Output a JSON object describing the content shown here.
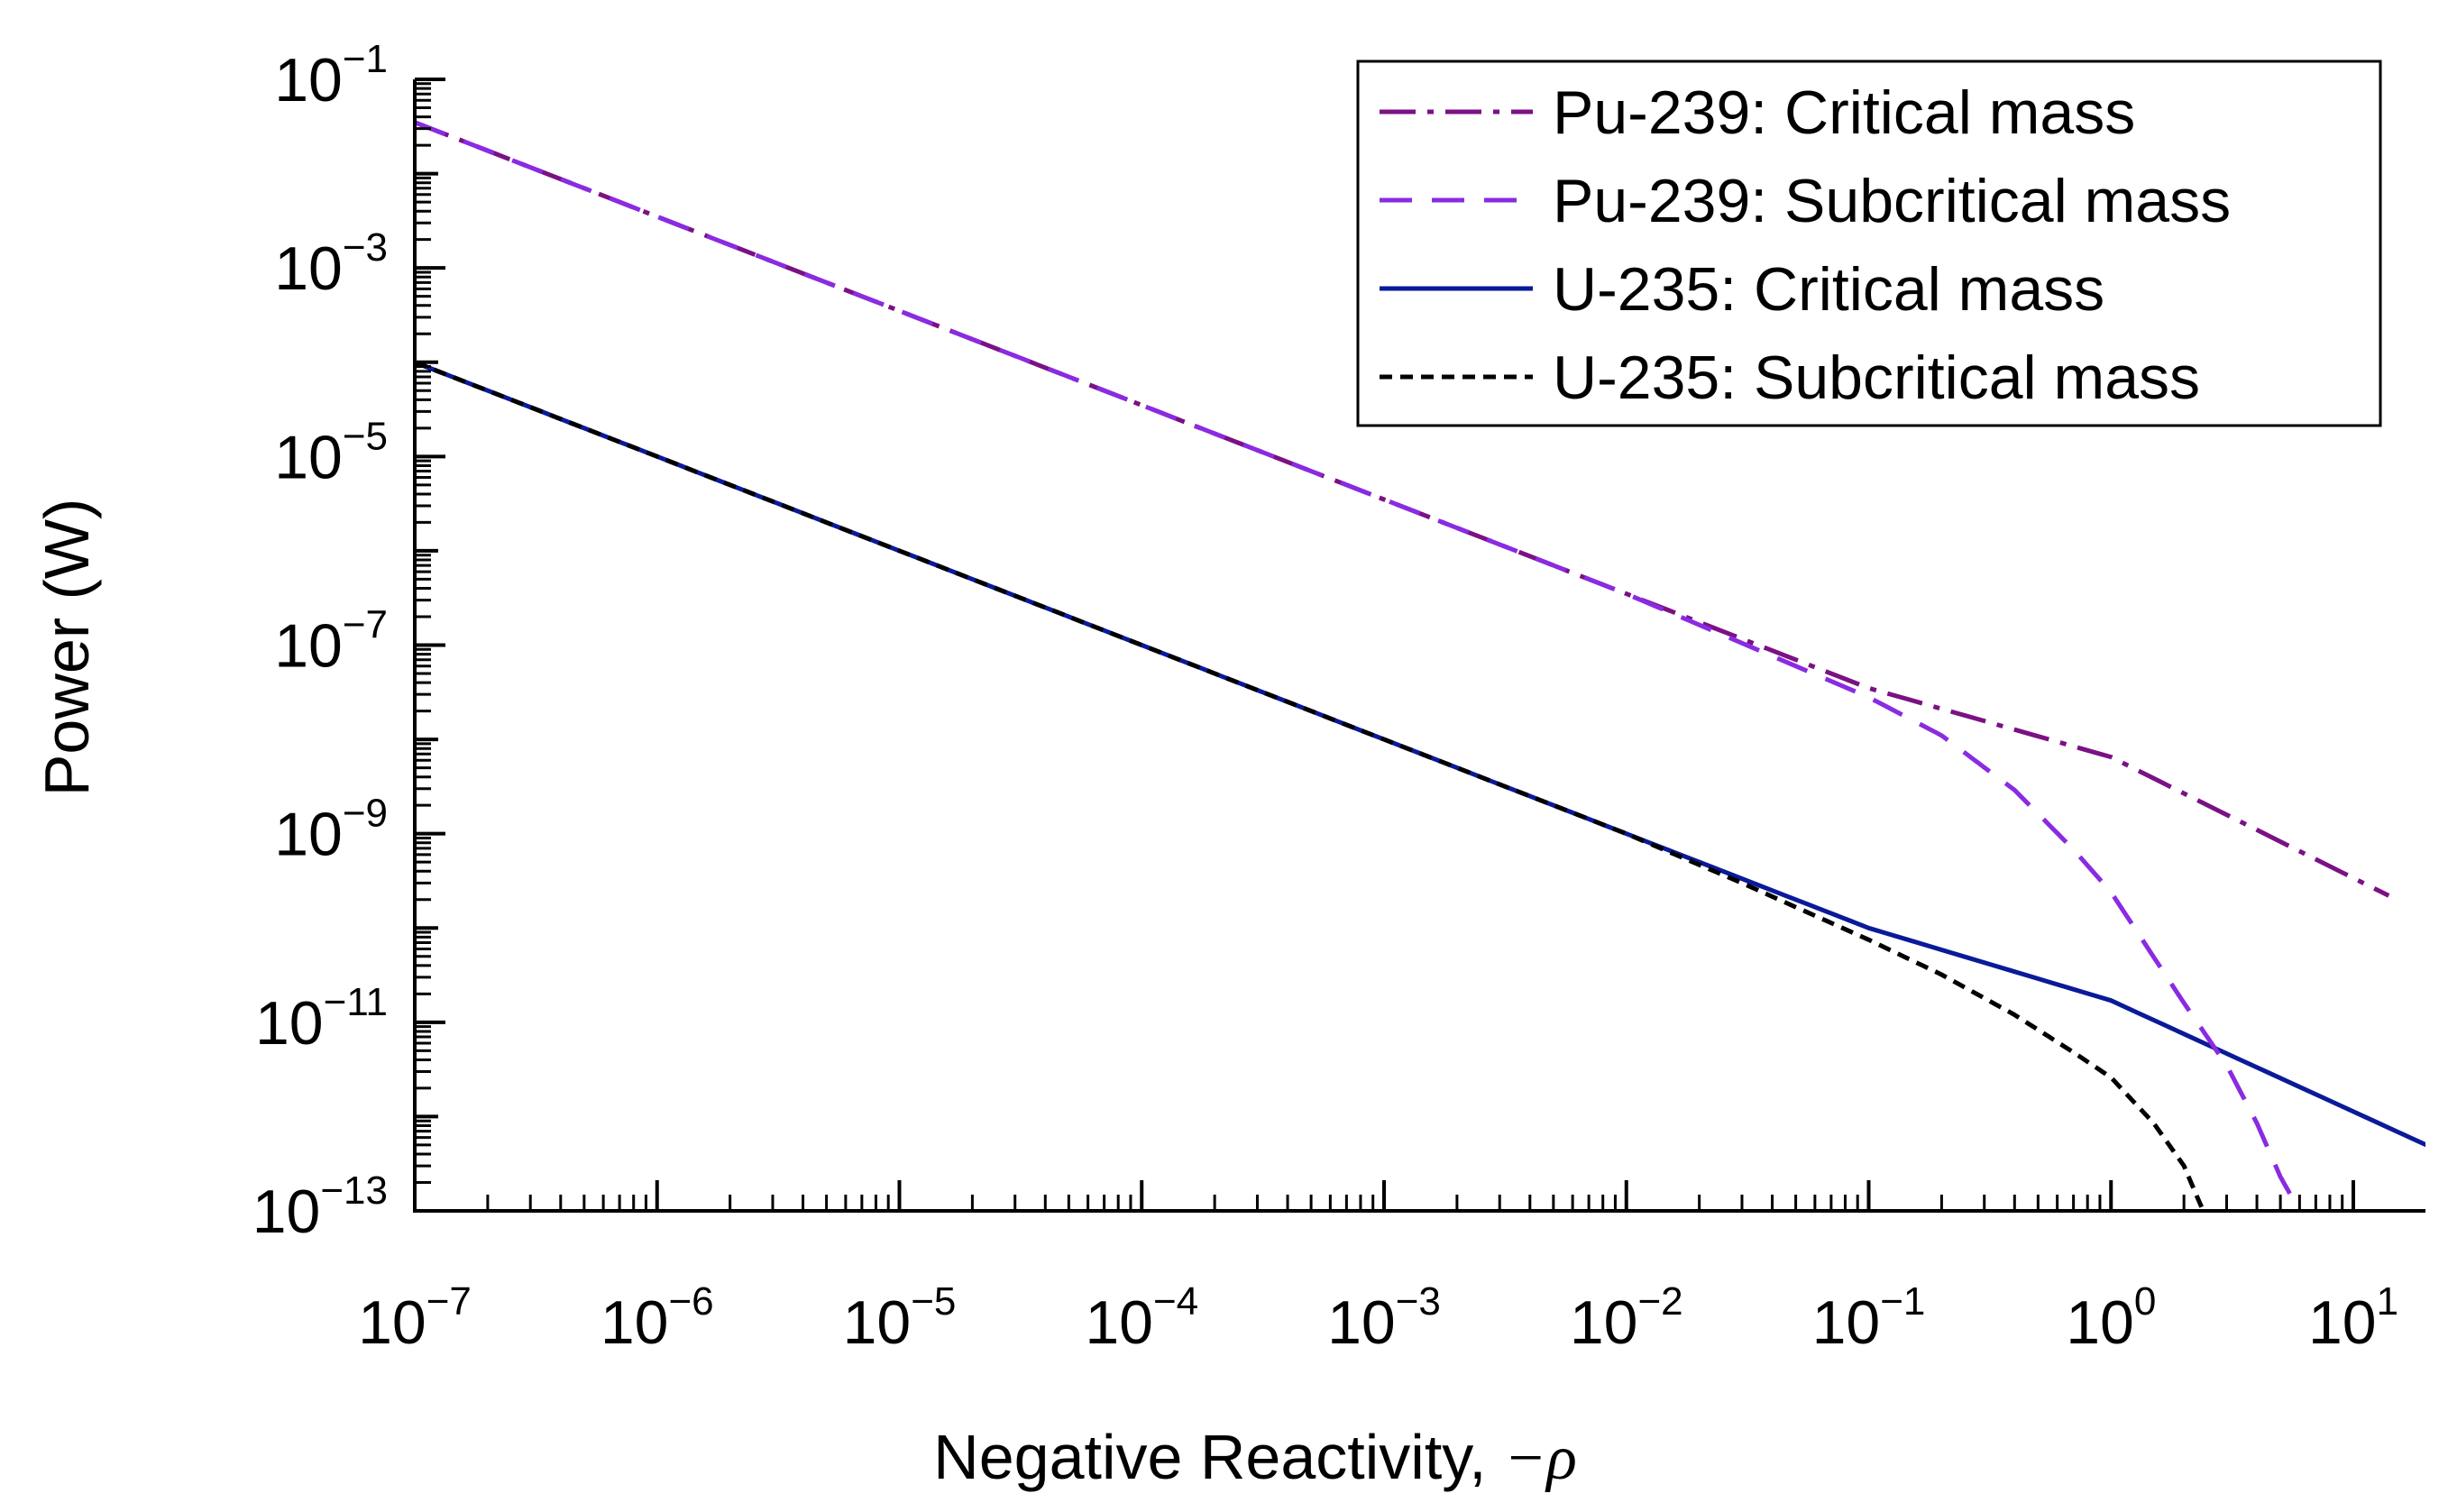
{
  "chart_data": {
    "type": "line",
    "xscale": "log",
    "yscale": "log",
    "xlim": [
      1e-07,
      20
    ],
    "ylim": [
      1e-13,
      0.1
    ],
    "xlabel_prefix": "Negative Reactivity, ",
    "xlabel_symbol": "−ρ",
    "ylabel": "Power (W)",
    "grid": false,
    "legend_position": "top-right",
    "x_ticks": [
      {
        "base": "10",
        "exp": "−7"
      },
      {
        "base": "10",
        "exp": "−6"
      },
      {
        "base": "10",
        "exp": "−5"
      },
      {
        "base": "10",
        "exp": "−4"
      },
      {
        "base": "10",
        "exp": "−3"
      },
      {
        "base": "10",
        "exp": "−2"
      },
      {
        "base": "10",
        "exp": "−1"
      },
      {
        "base": "10",
        "exp": "0"
      },
      {
        "base": "10",
        "exp": "1"
      }
    ],
    "y_ticks": [
      {
        "base": "10",
        "exp": "−13"
      },
      {
        "base": "10",
        "exp": "−11"
      },
      {
        "base": "10",
        "exp": "−9"
      },
      {
        "base": "10",
        "exp": "−7"
      },
      {
        "base": "10",
        "exp": "−5"
      },
      {
        "base": "10",
        "exp": "−3"
      },
      {
        "base": "10",
        "exp": "−1"
      }
    ],
    "series": [
      {
        "name": "Pu-239: Critical mass",
        "color": "#7b1184",
        "dash": "dashdot",
        "points": [
          [
            1e-07,
            0.035
          ],
          [
            1e-06,
            0.0035
          ],
          [
            1e-05,
            0.00035
          ],
          [
            0.0001,
            3.5e-05
          ],
          [
            0.001,
            3.5e-06
          ],
          [
            0.01,
            3.5e-07
          ],
          [
            0.1,
            3.5e-08
          ],
          [
            1,
            6.5e-09
          ],
          [
            14,
            2.2e-10
          ]
        ]
      },
      {
        "name": "Pu-239: Subcritical mass",
        "color": "#8a2be2",
        "dash": "dash",
        "points": [
          [
            1e-07,
            0.035
          ],
          [
            1e-06,
            0.0035
          ],
          [
            1e-05,
            0.00035
          ],
          [
            0.0001,
            3.5e-05
          ],
          [
            0.001,
            3.5e-06
          ],
          [
            0.01,
            3.5e-07
          ],
          [
            0.03,
            1.05e-07
          ],
          [
            0.1,
            2.8e-08
          ],
          [
            0.2,
            1.1e-08
          ],
          [
            0.4,
            2.9e-09
          ],
          [
            0.7,
            6.8e-10
          ],
          [
            1,
            2.4e-10
          ],
          [
            2,
            1.6e-11
          ],
          [
            3,
            3.5e-12
          ],
          [
            4,
            8.5e-13
          ],
          [
            5,
            2.3e-13
          ],
          [
            6,
            1e-13
          ]
        ]
      },
      {
        "name": "U-235: Critical mass",
        "color": "#0a1a99",
        "dash": "solid",
        "points": [
          [
            1e-07,
            0.0001
          ],
          [
            1e-06,
            1e-05
          ],
          [
            1e-05,
            1e-06
          ],
          [
            0.0001,
            1e-07
          ],
          [
            0.001,
            1e-08
          ],
          [
            0.01,
            1e-09
          ],
          [
            0.1,
            1e-10
          ],
          [
            1,
            1.7e-11
          ],
          [
            20,
            5e-13
          ]
        ]
      },
      {
        "name": "U-235: Subcritical mass",
        "color": "#000000",
        "dash": "shortdash",
        "points": [
          [
            1e-07,
            0.0001
          ],
          [
            1e-06,
            1e-05
          ],
          [
            1e-05,
            1e-06
          ],
          [
            0.0001,
            1e-07
          ],
          [
            0.001,
            1e-08
          ],
          [
            0.01,
            1e-09
          ],
          [
            0.03,
            3e-10
          ],
          [
            0.1,
            7.5e-11
          ],
          [
            0.2,
            3.2e-11
          ],
          [
            0.4,
            1.2e-11
          ],
          [
            0.7,
            4.8e-12
          ],
          [
            1,
            2.6e-12
          ],
          [
            1.5,
            8.5e-13
          ],
          [
            2,
            3e-13
          ],
          [
            2.4,
            1e-13
          ]
        ]
      }
    ]
  }
}
